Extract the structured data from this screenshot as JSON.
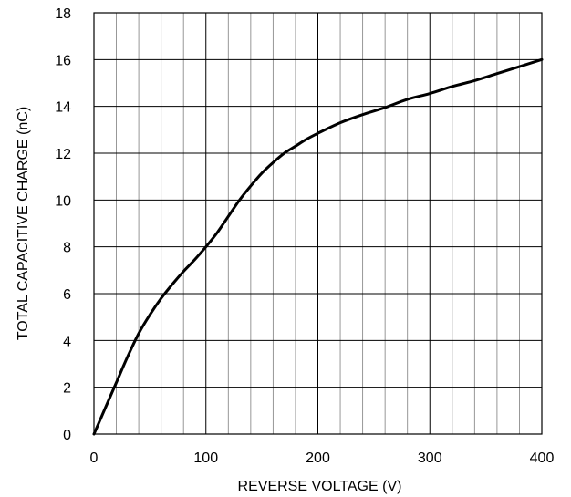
{
  "chart_data": {
    "type": "line",
    "title": "",
    "xlabel": "REVERSE VOLTAGE (V)",
    "ylabel": "TOTAL CAPACITIVE CHARGE (nC)",
    "xlim": [
      0,
      400
    ],
    "ylim": [
      0,
      18
    ],
    "x_ticks": [
      0,
      100,
      200,
      300,
      400
    ],
    "y_ticks": [
      0,
      2,
      4,
      6,
      8,
      10,
      12,
      14,
      16,
      18
    ],
    "x_minor_step": 20,
    "y_minor_step": 2,
    "grid": true,
    "legend": "none",
    "line_color": "#000000",
    "series": [
      {
        "x": [
          0,
          10,
          20,
          30,
          40,
          50,
          60,
          70,
          80,
          90,
          100,
          110,
          120,
          130,
          140,
          150,
          160,
          170,
          180,
          190,
          200,
          220,
          240,
          260,
          280,
          300,
          320,
          340,
          360,
          380,
          400
        ],
        "values": [
          0,
          1.1,
          2.2,
          3.3,
          4.3,
          5.1,
          5.8,
          6.4,
          6.95,
          7.45,
          8.0,
          8.6,
          9.3,
          10.0,
          10.6,
          11.15,
          11.6,
          12.0,
          12.3,
          12.6,
          12.85,
          13.3,
          13.65,
          13.95,
          14.3,
          14.55,
          14.85,
          15.1,
          15.4,
          15.7,
          16.0
        ]
      }
    ]
  }
}
